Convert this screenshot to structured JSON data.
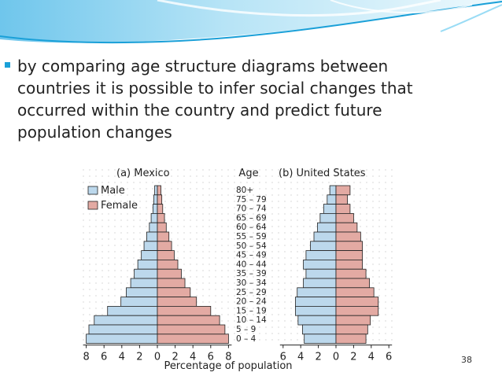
{
  "slide": {
    "bullet_text": "by comparing age structure diagrams between countries it is possible to infer social changes that occurred within the country and predict future population changes",
    "page_number": "38",
    "colors": {
      "accent": "#1aa0d8",
      "banner": "#8fd3f0"
    }
  },
  "chart_data": {
    "type": "bar",
    "xlabel": "Percentage of population",
    "age_header": "Age",
    "legend": {
      "placement": "top-left",
      "male": "Male",
      "female": "Female"
    },
    "colors": {
      "male": "#bcd8ec",
      "female": "#e3aaa3",
      "outline": "#222222"
    },
    "age_groups": [
      "80+",
      "75 – 79",
      "70 – 74",
      "65 – 69",
      "60 – 64",
      "55 – 59",
      "50 – 54",
      "45 – 49",
      "40 – 44",
      "35 – 39",
      "30 – 34",
      "25 – 29",
      "20 – 24",
      "15 – 19",
      "10 – 14",
      "5 – 9",
      "0 – 4"
    ],
    "panels": [
      {
        "label": "(a)  Mexico",
        "xlim": [
          -8,
          8
        ],
        "ticks": [
          8,
          6,
          4,
          2,
          0,
          2,
          4,
          6,
          8
        ],
        "series": [
          {
            "name": "Male",
            "values": [
              0.3,
              0.4,
              0.5,
              0.7,
              0.9,
              1.2,
              1.5,
              1.8,
              2.2,
              2.6,
              3.0,
              3.5,
              4.1,
              5.6,
              7.1,
              7.7,
              8.0
            ]
          },
          {
            "name": "Female",
            "values": [
              0.4,
              0.5,
              0.6,
              0.8,
              1.0,
              1.3,
              1.6,
              1.9,
              2.3,
              2.7,
              3.1,
              3.7,
              4.4,
              6.0,
              7.0,
              7.6,
              8.0
            ]
          }
        ]
      },
      {
        "label": "(b)  United States",
        "xlim": [
          -6,
          6
        ],
        "ticks": [
          6,
          4,
          2,
          0,
          2,
          4,
          6
        ],
        "series": [
          {
            "name": "Male",
            "values": [
              0.7,
              1.0,
              1.4,
              1.8,
              2.1,
              2.5,
              2.9,
              3.4,
              3.7,
              3.4,
              3.7,
              4.4,
              4.6,
              4.6,
              4.3,
              3.8,
              3.6
            ]
          },
          {
            "name": "Female",
            "values": [
              1.6,
              1.3,
              1.6,
              2.0,
              2.4,
              2.8,
              3.0,
              3.0,
              3.0,
              3.4,
              3.8,
              4.3,
              4.8,
              4.8,
              3.9,
              3.6,
              3.4
            ]
          }
        ]
      }
    ]
  }
}
